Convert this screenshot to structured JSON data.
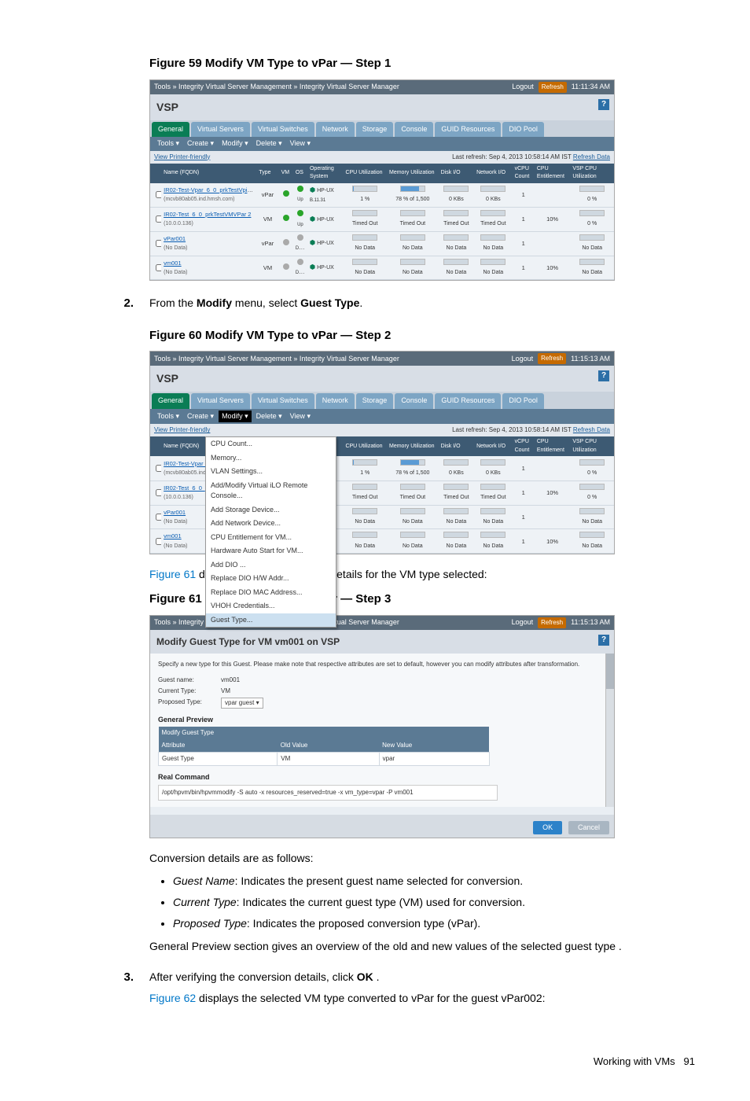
{
  "fig59": {
    "title": "Figure 59 Modify VM Type to vPar — Step 1",
    "breadcrumb": "Tools » Integrity Virtual Server Management » Integrity Virtual Server Manager",
    "logout": "Logout",
    "refresh": "Refresh",
    "time": "11:11:34 AM",
    "vsp": "VSP",
    "tabs": [
      "General",
      "Virtual Servers",
      "Virtual Switches",
      "Network",
      "Storage",
      "Console",
      "GUID Resources",
      "DIO Pool"
    ],
    "toolbar": [
      "Tools ▾",
      "Create ▾",
      "Modify ▾",
      "Delete ▾",
      "View ▾"
    ],
    "printer": "View Printer-friendly",
    "last_refresh": "Last refresh: Sep 4, 2013 10:58:14 AM IST",
    "refresh_link": "Refresh Data",
    "cols": [
      "",
      "Name (FQDN)",
      "Type",
      "VM",
      "OS",
      "Operating System",
      "CPU Utilization",
      "Memory Utilization",
      "Disk I/O",
      "Network I/O",
      "vCPU Count",
      "CPU Entitlement",
      "VSP CPU Utilization"
    ],
    "rows": [
      {
        "name": "IR02-Test-Vpar_6_0_prkTestVpib...",
        "sub": "(mcvb80ab05.ind.hmsh.com)",
        "type": "vPar",
        "vm": "green",
        "os": "green",
        "osn": "HP-UX",
        "osv": "B.11.31",
        "cpu": "1 %",
        "mem": "78 % of 1,500",
        "disk": "0 KBs",
        "net": "0 KBs",
        "vcpu": "1",
        "cpue": "",
        "vspc": "0 %"
      },
      {
        "name": "IR02-Test_6_0_prkTestVMVPar 2",
        "sub": "(10.0.0.136)",
        "type": "VM",
        "vm": "green",
        "os": "green",
        "osn": "HP-UX",
        "osv": "",
        "cpu": "Timed Out",
        "mem": "Timed Out",
        "disk": "Timed Out",
        "net": "Timed Out",
        "vcpu": "1",
        "cpue": "10%",
        "vspc": "0 %"
      },
      {
        "name": "vPar001",
        "sub": "(No Data)",
        "type": "vPar",
        "vm": "gray",
        "os": "gray",
        "osn": "HP-UX",
        "osv": "",
        "cpu": "No Data",
        "mem": "No Data",
        "disk": "No Data",
        "net": "No Data",
        "vcpu": "1",
        "cpue": "",
        "vspc": "No Data"
      },
      {
        "name": "vm001",
        "sub": "(No Data)",
        "type": "VM",
        "vm": "gray",
        "os": "gray",
        "osn": "HP-UX",
        "osv": "",
        "cpu": "No Data",
        "mem": "No Data",
        "disk": "No Data",
        "net": "No Data",
        "vcpu": "1",
        "cpue": "10%",
        "vspc": "No Data"
      }
    ]
  },
  "step2": {
    "num": "2.",
    "text_a": "From the ",
    "text_b": "Modify",
    "text_c": " menu, select ",
    "text_d": "Guest Type",
    "text_e": "."
  },
  "fig60": {
    "title": "Figure 60 Modify VM Type to vPar — Step 2",
    "time": "11:15:13 AM",
    "last_refresh": "Last refresh: Sep 4, 2013 10:58:14 AM IST",
    "menu": [
      "CPU Count...",
      "Memory...",
      "VLAN Settings...",
      "Add/Modify Virtual iLO Remote Console...",
      "Add Storage Device...",
      "Add Network Device...",
      "CPU Entitlement for VM...",
      "Hardware Auto Start for VM...",
      "Add DIO ...",
      "Replace DIO H/W Addr...",
      "Replace DIO MAC Address...",
      "VHOH Credentials..."
    ],
    "menu_sel": "Guest Type..."
  },
  "intro61_a": "Figure 61",
  "intro61_b": " displays all the conversion details for the VM type selected:",
  "fig61": {
    "title": "Figure 61 Modify VM Type to vPar — Step 3",
    "time": "11:15:13 AM",
    "pagetitle": "Modify Guest Type for VM vm001 on VSP",
    "note": "Specify a new type for this Guest. Please make note that respective attributes are set to default, however you can modify attributes after transformation.",
    "kv": [
      {
        "k": "Guest name:",
        "v": "vm001"
      },
      {
        "k": "Current Type:",
        "v": "VM"
      },
      {
        "k": "Proposed Type:",
        "v": "vpar guest  ▾"
      }
    ],
    "gp": "General Preview",
    "mt": "Modify Guest Type",
    "th": [
      "Attribute",
      "Old Value",
      "New Value"
    ],
    "td": [
      "Guest Type",
      "VM",
      "vpar"
    ],
    "rc": "Real Command",
    "cmd": "/opt/hpvm/bin/hpvmmodify -S auto -x resources_reserved=true -x vm_type=vpar -P vm001",
    "ok": "OK",
    "cancel": "Cancel"
  },
  "conv_intro": "Conversion details are as follows:",
  "bullets": [
    {
      "i": "Guest Name",
      "t": ": Indicates the present guest name selected for conversion."
    },
    {
      "i": "Current Type",
      "t": ": Indicates the current guest type (VM) used for conversion."
    },
    {
      "i": "Proposed Type",
      "t": ": Indicates the proposed conversion type (vPar)."
    }
  ],
  "gp_text": "General Preview section gives an overview of the old and new values of the selected guest type .",
  "step3": {
    "num": "3.",
    "a": "After verifying the conversion details, click ",
    "b": "OK",
    "c": " .",
    "d": "Figure 62",
    "e": " displays the selected VM type converted to vPar for the guest vPar002:"
  },
  "footer_a": "Working with VMs",
  "footer_b": "91"
}
